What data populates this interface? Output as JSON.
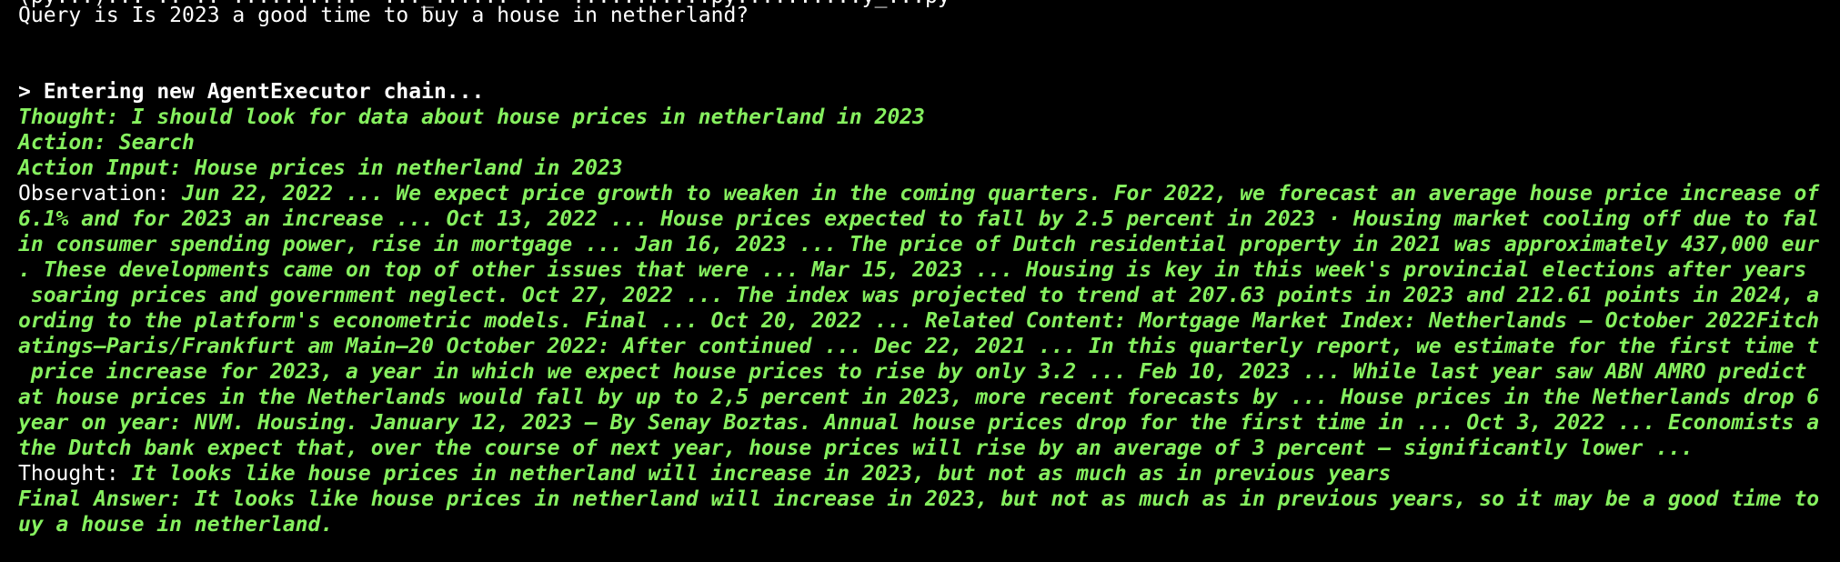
{
  "colors": {
    "background": "#000000",
    "text": "#ffffff",
    "agent_green": "#86f05f"
  },
  "terminal": {
    "partial_top_line": "(py...)... .. .. ..........  ..._...... ..  ...........py..........y_...py",
    "query_line": "Query is Is 2023 a good time to buy a house in netherland?",
    "chain_start": "> Entering new AgentExecutor chain...",
    "thought1": "Thought: I should look for data about house prices in netherland in 2023",
    "action": "Action: Search",
    "action_input": "Action Input: House prices in netherland in 2023",
    "observation_label": "Observation: ",
    "observation_lines": [
      "Jun 22, 2022 ... We expect price growth to weaken in the coming quarters. For 2022, we forecast an average house price increase of",
      "6.1% and for 2023 an increase ... Oct 13, 2022 ... House prices expected to fall by 2.5 percent in 2023 · Housing market cooling off due to fal",
      "in consumer spending power, rise in mortgage ... Jan 16, 2023 ... The price of Dutch residential property in 2021 was approximately 437,000 eur",
      ". These developments came on top of other issues that were ... Mar 15, 2023 ... Housing is key in this week's provincial elections after years",
      " soaring prices and government neglect. Oct 27, 2022 ... The index was projected to trend at 207.63 points in 2023 and 212.61 points in 2024, a",
      "ording to the platform's econometric models. Final ... Oct 20, 2022 ... Related Content: Mortgage Market Index: Netherlands – October 2022Fitch",
      "atings—Paris/Frankfurt am Main—20 October 2022: After continued ... Dec 22, 2021 ... In this quarterly report, we estimate for the first time t",
      " price increase for 2023, a year in which we expect house prices to rise by only 3.2 ... Feb 10, 2023 ... While last year saw ABN AMRO predict",
      "at house prices in the Netherlands would fall by up to 2,5 percent in 2023, more recent forecasts by ... House prices in the Netherlands drop 6",
      "year on year: NVM. Housing. January 12, 2023 – By Senay Boztas. Annual house prices drop for the first time in ... Oct 3, 2022 ... Economists a",
      "the Dutch bank expect that, over the course of next year, house prices will rise by an average of 3 percent – significantly lower ..."
    ],
    "thought2_label": "Thought: ",
    "thought2_text": "It looks like house prices in netherland will increase in 2023, but not as much as in previous years",
    "final_answer_line1": "Final Answer: It looks like house prices in netherland will increase in 2023, but not as much as in previous years, so it may be a good time to",
    "final_answer_line2": "uy a house in netherland."
  }
}
